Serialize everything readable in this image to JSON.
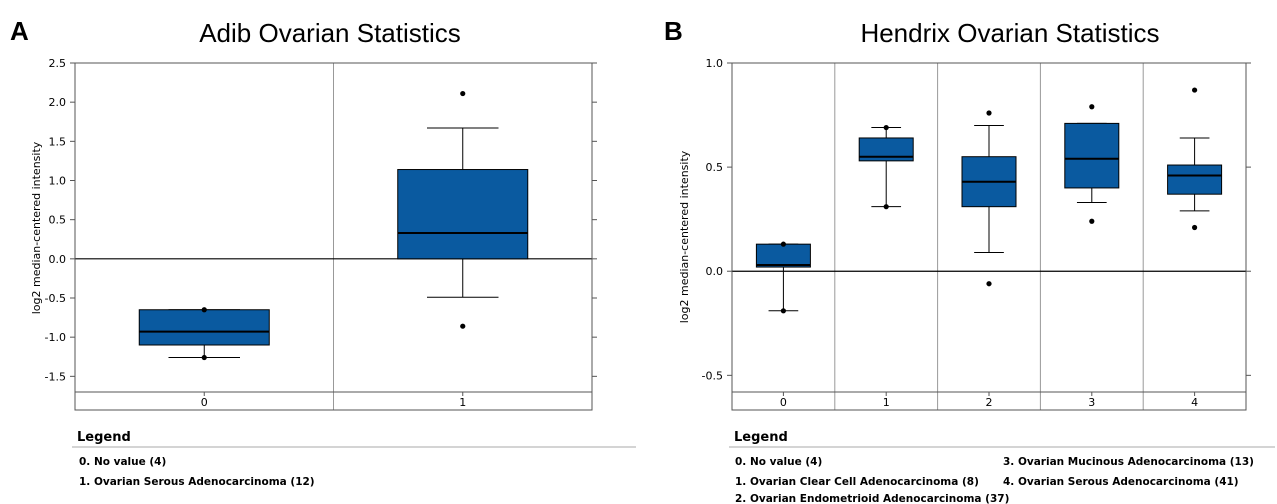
{
  "panels": [
    {
      "letter": "A",
      "title": "Adib Ovarian Statistics",
      "ylabel": "log2 median-centered intensity",
      "legend_title": "Legend",
      "legend_items": [
        "0. No value (4)",
        "1. Ovarian Serous Adenocarcinoma (12)"
      ]
    },
    {
      "letter": "B",
      "title": "Hendrix Ovarian Statistics",
      "ylabel": "log2 median-centered intensity",
      "legend_title": "Legend",
      "legend_items": [
        "0. No value (4)",
        "1. Ovarian Clear Cell Adenocarcinoma (8)",
        "2. Ovarian Endometrioid Adenocarcinoma (37)",
        "3. Ovarian Mucinous Adenocarcinoma (13)",
        "4. Ovarian Serous Adenocarcinoma (41)"
      ]
    }
  ],
  "colors": {
    "box_fill": "#0a5aa0",
    "frame": "#555555",
    "divider": "#999999",
    "legend_rule": "#aaaaaa"
  },
  "chart_data": [
    {
      "type": "box",
      "title": "Adib Ovarian Statistics",
      "ylabel": "log2 median-centered intensity",
      "ylim": [
        -1.7,
        2.5
      ],
      "yticks": [
        "2.5",
        "2.0",
        "1.5",
        "1.0",
        "0.5",
        "0.0",
        "-0.5",
        "-1.0",
        "-1.5"
      ],
      "categories": [
        "0",
        "1"
      ],
      "reference_line": 0,
      "boxes": [
        {
          "category": "0",
          "whisker_low": -1.26,
          "q1": -1.1,
          "median": -0.93,
          "q3": -0.65,
          "whisker_high": -0.65,
          "outliers": [
            -0.65,
            -1.26
          ]
        },
        {
          "category": "1",
          "whisker_low": -0.49,
          "q1": 0.0,
          "median": 0.33,
          "q3": 1.14,
          "whisker_high": 1.67,
          "outliers": [
            2.11,
            -0.86
          ]
        }
      ]
    },
    {
      "type": "box",
      "title": "Hendrix Ovarian Statistics",
      "ylabel": "log2 median-centered intensity",
      "ylim": [
        -0.58,
        1.0
      ],
      "yticks": [
        "1.0",
        "0.5",
        "0.0",
        "-0.5"
      ],
      "categories": [
        "0",
        "1",
        "2",
        "3",
        "4"
      ],
      "reference_line": 0,
      "boxes": [
        {
          "category": "0",
          "whisker_low": -0.19,
          "q1": 0.02,
          "median": 0.03,
          "q3": 0.13,
          "whisker_high": 0.13,
          "outliers": [
            0.13,
            -0.19
          ]
        },
        {
          "category": "1",
          "whisker_low": 0.31,
          "q1": 0.53,
          "median": 0.55,
          "q3": 0.64,
          "whisker_high": 0.69,
          "outliers": [
            0.69,
            0.31
          ]
        },
        {
          "category": "2",
          "whisker_low": 0.09,
          "q1": 0.31,
          "median": 0.43,
          "q3": 0.55,
          "whisker_high": 0.7,
          "outliers": [
            0.76,
            -0.06
          ]
        },
        {
          "category": "3",
          "whisker_low": 0.33,
          "q1": 0.4,
          "median": 0.54,
          "q3": 0.71,
          "whisker_high": 0.71,
          "outliers": [
            0.79,
            0.24
          ]
        },
        {
          "category": "4",
          "whisker_low": 0.29,
          "q1": 0.37,
          "median": 0.46,
          "q3": 0.51,
          "whisker_high": 0.64,
          "outliers": [
            0.87,
            0.21
          ]
        }
      ]
    }
  ]
}
